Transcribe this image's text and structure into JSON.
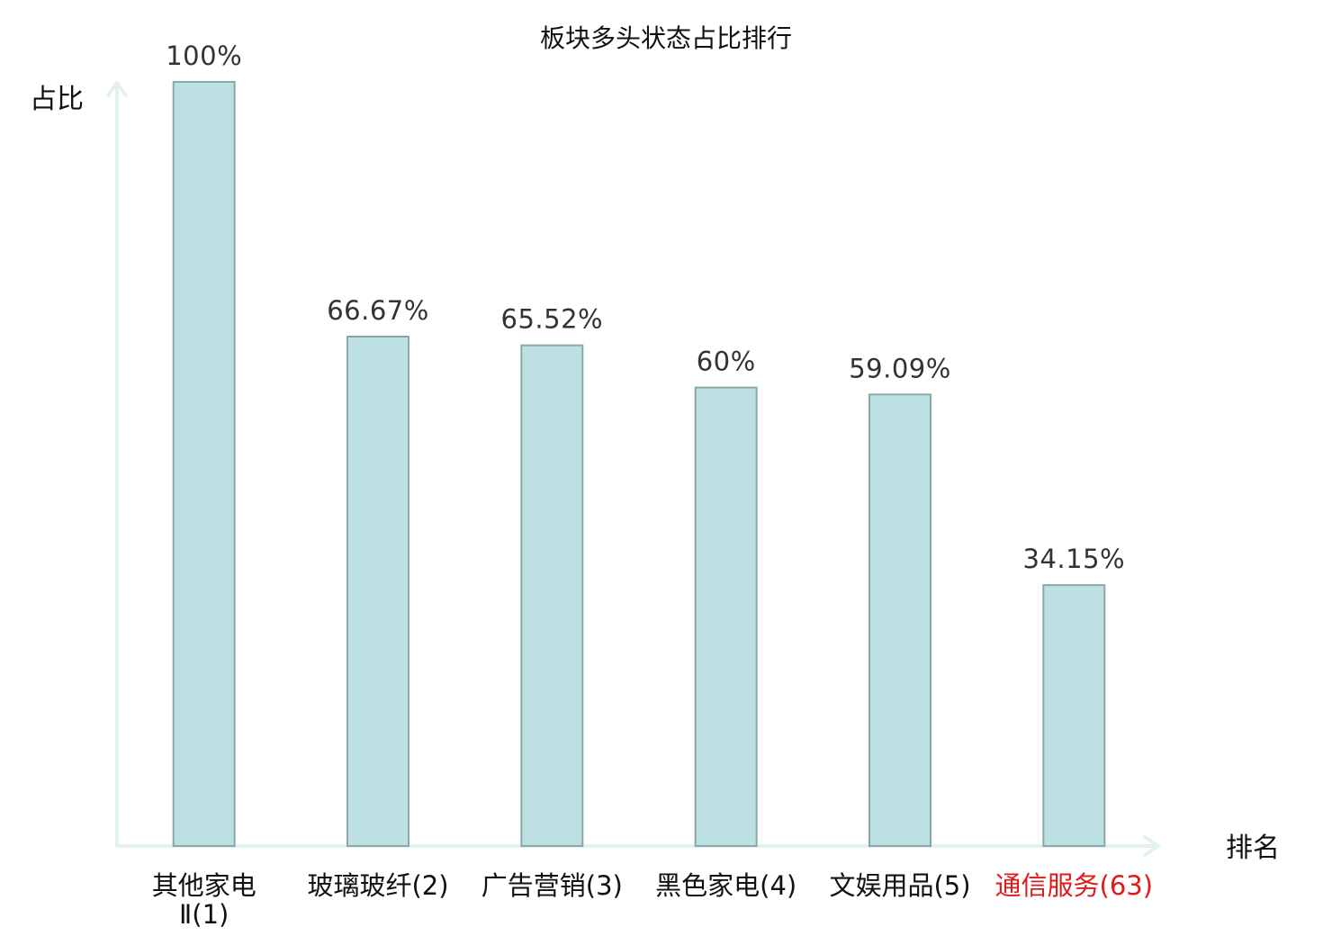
{
  "chart_data": {
    "type": "bar",
    "title": "板块多头状态占比排行",
    "ylabel": "占比",
    "xlabel": "排名",
    "ylim": [
      0,
      100
    ],
    "grid": false,
    "categories": [
      {
        "lines": [
          "其他家电",
          "Ⅱ(1)"
        ],
        "highlight": false
      },
      {
        "lines": [
          "玻璃玻纤(2)"
        ],
        "highlight": false
      },
      {
        "lines": [
          "广告营销(3)"
        ],
        "highlight": false
      },
      {
        "lines": [
          "黑色家电(4)"
        ],
        "highlight": false
      },
      {
        "lines": [
          "文娱用品(5)"
        ],
        "highlight": false
      },
      {
        "lines": [
          "通信服务(63)"
        ],
        "highlight": true
      }
    ],
    "values": [
      100,
      66.67,
      65.52,
      60,
      59.09,
      34.15
    ],
    "value_labels": [
      "100%",
      "66.67%",
      "65.52%",
      "60%",
      "59.09%",
      "34.15%"
    ],
    "colors": {
      "bar_fill": "#bde0e2",
      "bar_stroke": "#8aa8aa",
      "axis": "#e2f2f0",
      "highlight_text": "#e01a1a"
    }
  }
}
